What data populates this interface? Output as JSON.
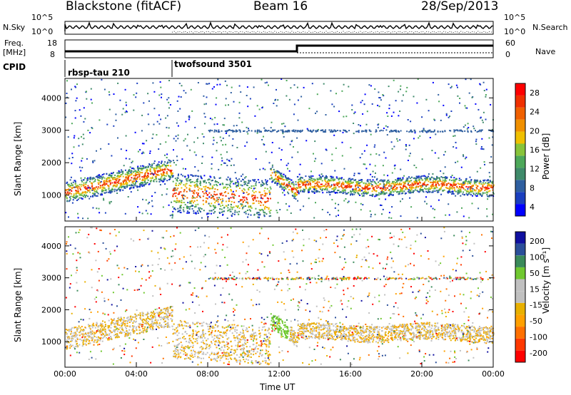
{
  "header": {
    "station": "Blackstone (fitACF)",
    "beam": "Beam 16",
    "date": "28/Sep/2013"
  },
  "noise_panel": {
    "left_label": "N.Sky",
    "right_label": "N.Search",
    "tick_top": "10^5",
    "tick_bottom": "10^0"
  },
  "freq_panel": {
    "left_label_line1": "Freq.",
    "left_label_line2": "[MHz]",
    "left_ticks": [
      "18",
      "8"
    ],
    "right_label": "Nave",
    "right_ticks": [
      "60",
      "0"
    ]
  },
  "cpid_panel": {
    "label": "CPID",
    "modes": [
      {
        "name": "rbsp-tau 210",
        "start_hour": 0
      },
      {
        "name": "twofsound 3501",
        "start_hour": 6
      }
    ]
  },
  "chart_data": [
    {
      "type": "heatmap",
      "name": "power",
      "ylabel": "Slant Range [km]",
      "ylim": [
        200,
        4600
      ],
      "yticks": [
        "1000",
        "2000",
        "3000",
        "4000"
      ],
      "ytick_values": [
        1000,
        2000,
        3000,
        4000
      ],
      "colorbar": {
        "label": "Power [dB]",
        "ticks": [
          "28",
          "24",
          "20",
          "16",
          "12",
          "8",
          "4"
        ],
        "colors": [
          "#0000ff",
          "#1a3fbf",
          "#2f5fa0",
          "#3f8a6a",
          "#4da85a",
          "#88c43a",
          "#f0c000",
          "#f09000",
          "#f06000",
          "#f03000",
          "#ff0000"
        ]
      }
    },
    {
      "type": "heatmap",
      "name": "velocity",
      "ylabel": "Slant Range [km]",
      "ylim": [
        200,
        4600
      ],
      "yticks": [
        "1000",
        "2000",
        "3000",
        "4000"
      ],
      "ytick_values": [
        1000,
        2000,
        3000,
        4000
      ],
      "colorbar": {
        "label": "Velocity [m s⁻¹]",
        "ticks": [
          "200",
          "100",
          "50",
          "15",
          "-15",
          "-50",
          "-100",
          "-200"
        ],
        "colors": [
          "#ff0000",
          "#ff3800",
          "#ff7000",
          "#ffa000",
          "#e8b000",
          "#c0c0c0",
          "#c0c0c0",
          "#70c830",
          "#3a8a5a",
          "#2b4f9a",
          "#1010a0"
        ]
      }
    }
  ],
  "x_axis": {
    "label": "Time UT",
    "ticks": [
      "00:00",
      "04:00",
      "08:00",
      "12:00",
      "16:00",
      "20:00",
      "00:00"
    ],
    "tick_hours": [
      0,
      4,
      8,
      12,
      16,
      20,
      24
    ]
  }
}
